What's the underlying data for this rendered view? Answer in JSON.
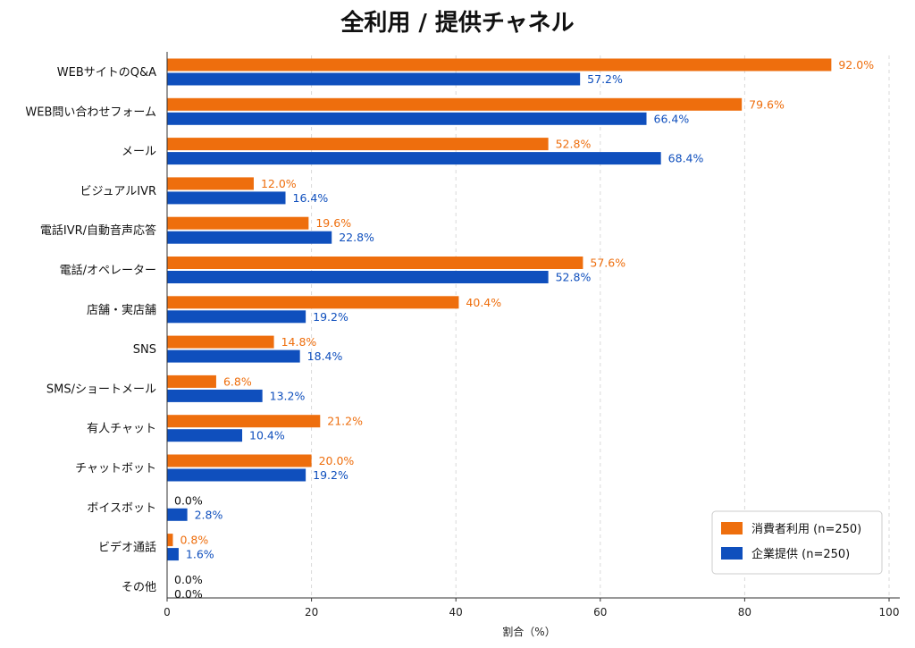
{
  "chart_data": {
    "type": "bar",
    "orientation": "horizontal",
    "title": "全利用 / 提供チャネル",
    "xlabel": "割合（%）",
    "xlim": [
      0,
      100
    ],
    "xticks": [
      0,
      20,
      40,
      60,
      80,
      100
    ],
    "grid": "vertical dashed",
    "legend_position": "bottom-right",
    "categories": [
      "WEBサイトのQ&A",
      "WEB問い合わせフォーム",
      "メール",
      "ビジュアルIVR",
      "電話IVR/自動音声応答",
      "電話/オペレーター",
      "店舗・実店舗",
      "SNS",
      "SMS/ショートメール",
      "有人チャット",
      "チャットボット",
      "ボイスボット",
      "ビデオ通話",
      "その他"
    ],
    "series": [
      {
        "name": "消費者利用 (n=250)",
        "color": "#ee6e0d",
        "values": [
          92.0,
          79.6,
          52.8,
          12.0,
          19.6,
          57.6,
          40.4,
          14.8,
          6.8,
          21.2,
          20.0,
          0.0,
          0.8,
          0.0
        ],
        "labels": [
          "92.0%",
          "79.6%",
          "52.8%",
          "12.0%",
          "19.6%",
          "57.6%",
          "40.4%",
          "14.8%",
          "6.8%",
          "21.2%",
          "20.0%",
          "0.0%",
          "0.8%",
          "0.0%"
        ]
      },
      {
        "name": "企業提供 (n=250)",
        "color": "#0f4fbd",
        "values": [
          57.2,
          66.4,
          68.4,
          16.4,
          22.8,
          52.8,
          19.2,
          18.4,
          13.2,
          10.4,
          19.2,
          2.8,
          1.6,
          0.0
        ],
        "labels": [
          "57.2%",
          "66.4%",
          "68.4%",
          "16.4%",
          "22.8%",
          "52.8%",
          "19.2%",
          "18.4%",
          "13.2%",
          "10.4%",
          "19.2%",
          "2.8%",
          "1.6%",
          "0.0%"
        ]
      }
    ],
    "zero_label_color": "#111111"
  }
}
